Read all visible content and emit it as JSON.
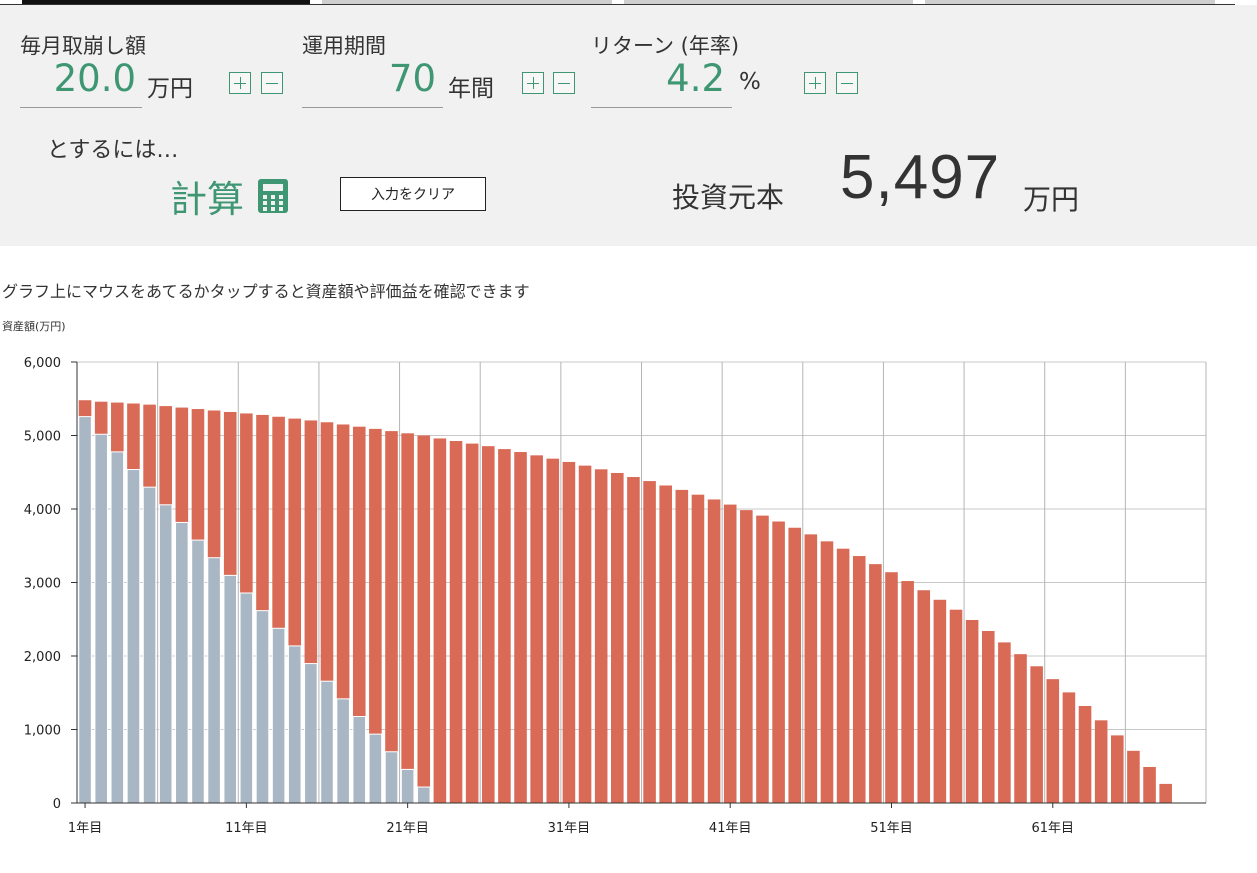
{
  "colors": {
    "accent": "#3e9672",
    "principal_bar": "#a9b7c4",
    "gain_bar": "#d96b56",
    "panel_bg": "#f1f1f1"
  },
  "form": {
    "withdrawal": {
      "label": "毎月取崩し額",
      "value": "20.0",
      "unit": "万円"
    },
    "period": {
      "label": "運用期間",
      "value": "70",
      "unit": "年間"
    },
    "return": {
      "label": "リターン (年率)",
      "value": "4.2",
      "unit": "%"
    },
    "tosuru_text": "とするには…",
    "calc_label": "計算",
    "calc_icon": "calculator-icon",
    "clear_label": "入力をクリア",
    "plus_icon": "plus-icon",
    "minus_icon": "minus-icon"
  },
  "result": {
    "label": "投資元本",
    "value": "5,497",
    "unit": "万円"
  },
  "hint": "グラフ上にマウスをあてるかタップすると資産額や評価益を確認できます",
  "chart_data": {
    "type": "bar",
    "ylabel": "資産額(万円)",
    "ylim": [
      0,
      6000
    ],
    "yticks": [
      0,
      1000,
      2000,
      3000,
      4000,
      5000,
      6000
    ],
    "ytick_labels": [
      "0",
      "1,000",
      "2,000",
      "3,000",
      "4,000",
      "5,000",
      "6,000"
    ],
    "xtick_labels": [
      "1年目",
      "11年目",
      "21年目",
      "31年目",
      "41年目",
      "51年目",
      "61年目"
    ],
    "xtick_years": [
      1,
      11,
      21,
      31,
      41,
      51,
      61
    ],
    "grid": true,
    "years": [
      1,
      2,
      3,
      4,
      5,
      6,
      7,
      8,
      9,
      10,
      11,
      12,
      13,
      14,
      15,
      16,
      17,
      18,
      19,
      20,
      21,
      22,
      23,
      24,
      25,
      26,
      27,
      28,
      29,
      30,
      31,
      32,
      33,
      34,
      35,
      36,
      37,
      38,
      39,
      40,
      41,
      42,
      43,
      44,
      45,
      46,
      47,
      48,
      49,
      50,
      51,
      52,
      53,
      54,
      55,
      56,
      57,
      58,
      59,
      60,
      61,
      62,
      63,
      64,
      65,
      66,
      67,
      68,
      69,
      70
    ],
    "series": [
      {
        "key": "principal",
        "values": [
          5257,
          5017,
          4777,
          4537,
          4297,
          4057,
          3817,
          3577,
          3337,
          3097,
          2857,
          2617,
          2377,
          2137,
          1897,
          1657,
          1417,
          1177,
          937,
          697,
          457,
          217,
          0,
          0,
          0,
          0,
          0,
          0,
          0,
          0,
          0,
          0,
          0,
          0,
          0,
          0,
          0,
          0,
          0,
          0,
          0,
          0,
          0,
          0,
          0,
          0,
          0,
          0,
          0,
          0,
          0,
          0,
          0,
          0,
          0,
          0,
          0,
          0,
          0,
          0,
          0,
          0,
          0,
          0,
          0,
          0,
          0,
          0,
          0,
          0
        ]
      },
      {
        "key": "total",
        "values": [
          5480,
          5460,
          5448,
          5435,
          5420,
          5400,
          5380,
          5360,
          5340,
          5320,
          5300,
          5280,
          5255,
          5230,
          5205,
          5180,
          5150,
          5120,
          5090,
          5060,
          5030,
          5000,
          4960,
          4925,
          4890,
          4855,
          4815,
          4775,
          4730,
          4685,
          4640,
          4590,
          4540,
          4490,
          4435,
          4380,
          4320,
          4260,
          4195,
          4130,
          4060,
          3985,
          3910,
          3830,
          3745,
          3655,
          3560,
          3460,
          3360,
          3250,
          3140,
          3020,
          2895,
          2765,
          2630,
          2490,
          2340,
          2185,
          2025,
          1860,
          1685,
          1505,
          1320,
          1125,
          920,
          710,
          490,
          260,
          0,
          0
        ]
      }
    ]
  }
}
